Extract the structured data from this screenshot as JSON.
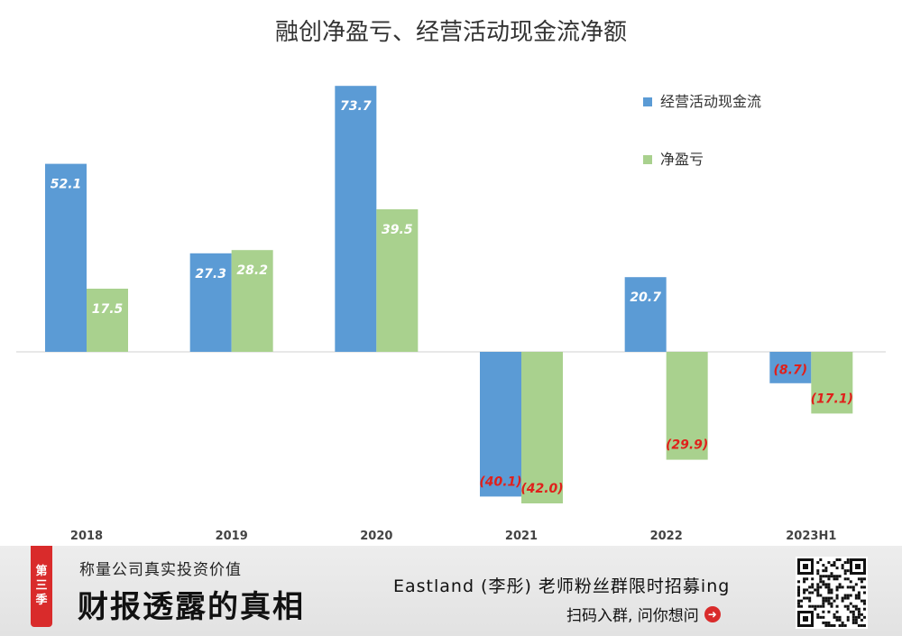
{
  "chart_data": {
    "type": "bar",
    "title": "融创净盈亏、经营活动现金流净额",
    "categories": [
      "2018",
      "2019",
      "2020",
      "2021",
      "2022",
      "2023H1"
    ],
    "series": [
      {
        "name": "经营活动现金流",
        "color": "#5b9bd5",
        "values": [
          52.1,
          27.3,
          73.7,
          -40.1,
          20.7,
          -8.7
        ],
        "labels": [
          "52.1",
          "27.3",
          "73.7",
          "(40.1)",
          "20.7",
          "(8.7)"
        ]
      },
      {
        "name": "净盈亏",
        "color": "#a9d18e",
        "values": [
          17.5,
          28.2,
          39.5,
          -42.0,
          -29.9,
          -17.1
        ],
        "labels": [
          "17.5",
          "28.2",
          "39.5",
          "(42.0)",
          "(29.9)",
          "(17.1)"
        ]
      }
    ],
    "legend_position": "top-right",
    "grid": false,
    "negative_label_color": "#e0201b",
    "positive_label_color": "#ffffff"
  },
  "footer": {
    "season_tag": [
      "第",
      "三",
      "季"
    ],
    "brand_sub": "称量公司真实投资价值",
    "brand_main": "财报透露的真相",
    "promo": "Eastland (李彤) 老师粉丝群限时招募ing",
    "scan_text": "扫码入群, 问你想问"
  }
}
